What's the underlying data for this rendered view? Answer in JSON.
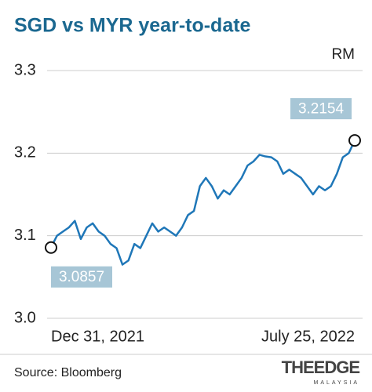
{
  "chart_data": {
    "type": "line",
    "title": "SGD vs MYR year-to-date",
    "y_unit": "RM",
    "source": "Source: Bloomberg",
    "logo": "THEEDGE",
    "logo_sub": "MALAYSIA",
    "color": "#1f77b8",
    "label_color": "#a7c6d6",
    "grid": true,
    "ylim": [
      3.0,
      3.3
    ],
    "yticks": [
      {
        "value": 3.0,
        "label": "3.0"
      },
      3.1,
      3.2,
      3.3
    ],
    "categories": [
      "Dec 31, 2021",
      null,
      null,
      null,
      null,
      null,
      null,
      null,
      null,
      null,
      null,
      null,
      null,
      null,
      null,
      null,
      null,
      null,
      null,
      null,
      null,
      null,
      null,
      null,
      null,
      null,
      null,
      null,
      null,
      null,
      null,
      null,
      null,
      null,
      null,
      null,
      null,
      null,
      null,
      null,
      null,
      null,
      null,
      null,
      null,
      null,
      null,
      null,
      null,
      null,
      null,
      "July 25, 2022"
    ],
    "values": [
      3.0857,
      3.1,
      3.105,
      3.11,
      3.118,
      3.096,
      3.11,
      3.115,
      3.105,
      3.1,
      3.09,
      3.085,
      3.065,
      3.07,
      3.09,
      3.085,
      3.1,
      3.115,
      3.105,
      3.11,
      3.105,
      3.1,
      3.11,
      3.125,
      3.13,
      3.16,
      3.17,
      3.16,
      3.145,
      3.155,
      3.15,
      3.16,
      3.17,
      3.185,
      3.19,
      3.198,
      3.196,
      3.195,
      3.19,
      3.175,
      3.18,
      3.175,
      3.17,
      3.16,
      3.15,
      3.16,
      3.155,
      3.16,
      3.175,
      3.195,
      3.2,
      3.2154
    ],
    "value_labels": [
      "3.0857",
      null,
      null,
      null,
      null,
      null,
      null,
      null,
      null,
      null,
      null,
      null,
      null,
      null,
      null,
      null,
      null,
      null,
      null,
      null,
      null,
      null,
      null,
      null,
      null,
      null,
      null,
      null,
      null,
      null,
      null,
      null,
      null,
      null,
      null,
      null,
      null,
      null,
      null,
      null,
      null,
      null,
      null,
      null,
      null,
      null,
      null,
      null,
      null,
      null,
      null,
      "3.2154"
    ]
  }
}
